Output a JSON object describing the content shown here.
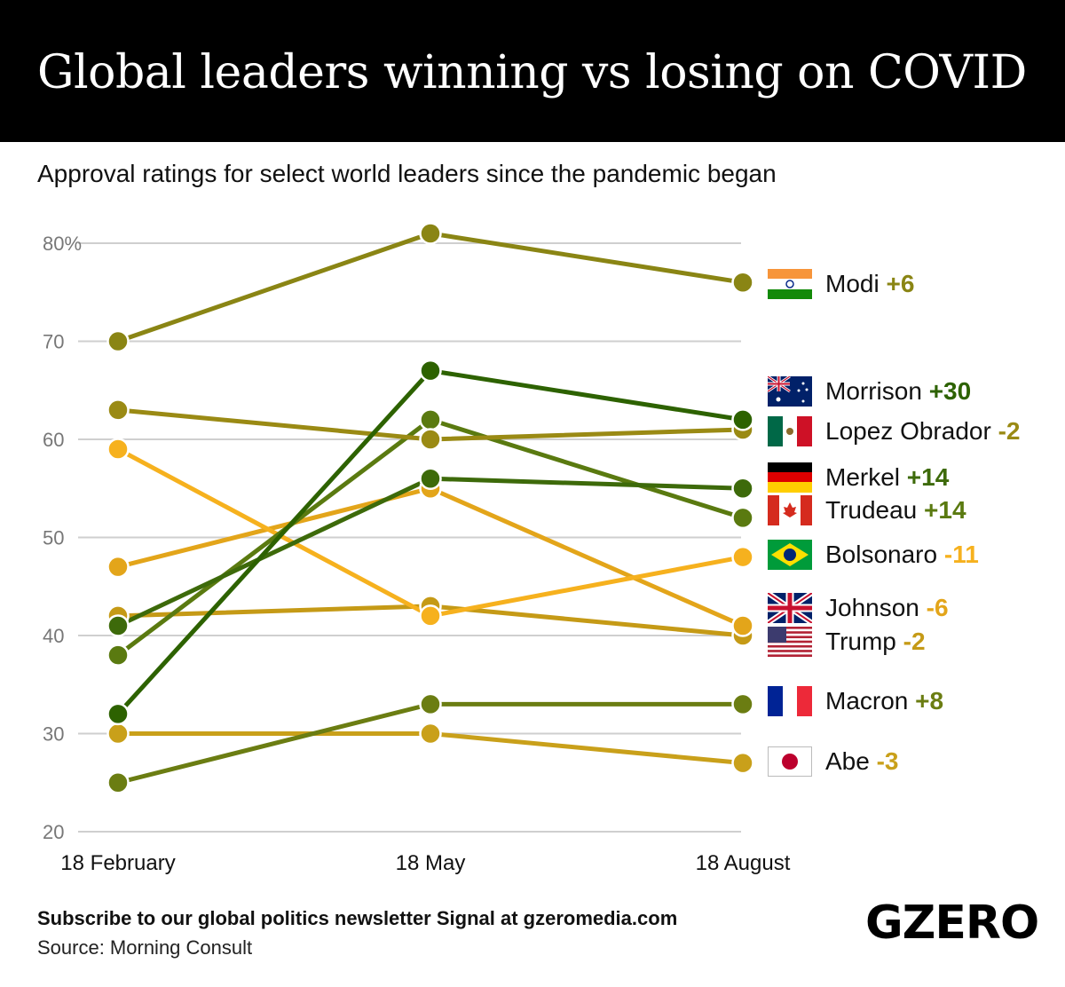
{
  "header": {
    "title": "Global leaders winning vs losing on COVID"
  },
  "subtitle": "Approval ratings for select world leaders since the pandemic began",
  "footer": {
    "newsletter": "Subscribe to our global politics newsletter Signal at gzeromedia.com",
    "source": "Source: Morning Consult",
    "logo": "GZERO"
  },
  "chart_data": {
    "type": "line",
    "title": "Global leaders winning vs losing on COVID",
    "subtitle": "Approval ratings for select world leaders since the pandemic began",
    "categories": [
      "18 February",
      "18 May",
      "18 August"
    ],
    "ylim": [
      20,
      80
    ],
    "yticks": [
      20,
      30,
      40,
      50,
      60,
      70,
      80
    ],
    "ytick_labels": [
      "20",
      "30",
      "40",
      "50",
      "60",
      "70",
      "80%"
    ],
    "grid": true,
    "legend": "right",
    "series": [
      {
        "name": "Modi",
        "change": "+6",
        "flag": "india",
        "values": [
          70,
          81,
          76
        ],
        "color": "#8a8514"
      },
      {
        "name": "Morrison",
        "change": "+30",
        "flag": "australia",
        "values": [
          32,
          67,
          62
        ],
        "color": "#2d6200"
      },
      {
        "name": "Lopez Obrador",
        "change": "-2",
        "flag": "mexico",
        "values": [
          63,
          60,
          61
        ],
        "color": "#9a8a14"
      },
      {
        "name": "Merkel",
        "change": "+14",
        "flag": "germany",
        "values": [
          41,
          56,
          55
        ],
        "color": "#3d6a0a"
      },
      {
        "name": "Trudeau",
        "change": "+14",
        "flag": "canada",
        "values": [
          38,
          62,
          52
        ],
        "color": "#5a7a10"
      },
      {
        "name": "Bolsonaro",
        "change": "-11",
        "flag": "brazil",
        "values": [
          59,
          42,
          48
        ],
        "color": "#f6b11e"
      },
      {
        "name": "Johnson",
        "change": "-6",
        "flag": "uk",
        "values": [
          47,
          55,
          41
        ],
        "color": "#e3a51a"
      },
      {
        "name": "Trump",
        "change": "-2",
        "flag": "usa",
        "values": [
          42,
          43,
          40
        ],
        "color": "#c59a16"
      },
      {
        "name": "Macron",
        "change": "+8",
        "flag": "france",
        "values": [
          25,
          33,
          33
        ],
        "color": "#6b7d12"
      },
      {
        "name": "Abe",
        "change": "-3",
        "flag": "japan",
        "values": [
          30,
          30,
          27
        ],
        "color": "#c9a01a"
      }
    ]
  }
}
